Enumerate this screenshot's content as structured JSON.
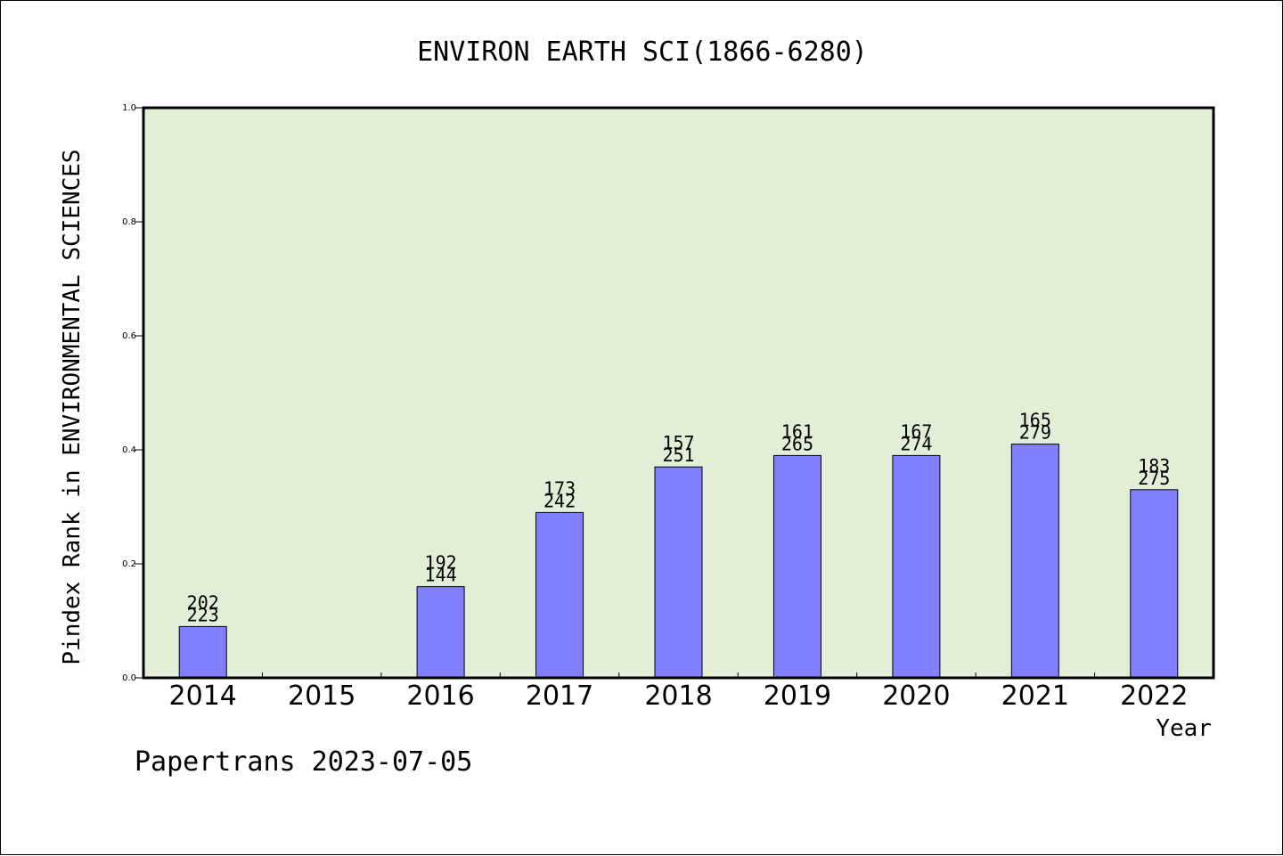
{
  "chart_data": {
    "type": "bar",
    "title": "ENVIRON EARTH SCI(1866-6280)",
    "xlabel": "Year",
    "ylabel": "Pindex Rank in ENVIRONMENTAL SCIENCES",
    "ylim": [
      0,
      1.0
    ],
    "yticks": [
      "0.0",
      "0.2",
      "0.4",
      "0.6",
      "0.8",
      "1.0"
    ],
    "categories": [
      "2014",
      "2015",
      "2016",
      "2017",
      "2018",
      "2019",
      "2020",
      "2021",
      "2022"
    ],
    "values": [
      0.09,
      null,
      0.16,
      0.29,
      0.37,
      0.39,
      0.39,
      0.41,
      0.33
    ],
    "labels_top": [
      "202",
      "",
      "192",
      "173",
      "157",
      "161",
      "167",
      "165",
      "183"
    ],
    "labels_bottom": [
      "223",
      "",
      "144",
      "242",
      "251",
      "265",
      "274",
      "279",
      "275"
    ],
    "grid": false,
    "colors": {
      "plot_background": "#e2efd6",
      "bar_fill": "#8080ff",
      "bar_stroke": "#000000"
    }
  },
  "footer": {
    "credit": "Papertrans 2023-07-05"
  }
}
